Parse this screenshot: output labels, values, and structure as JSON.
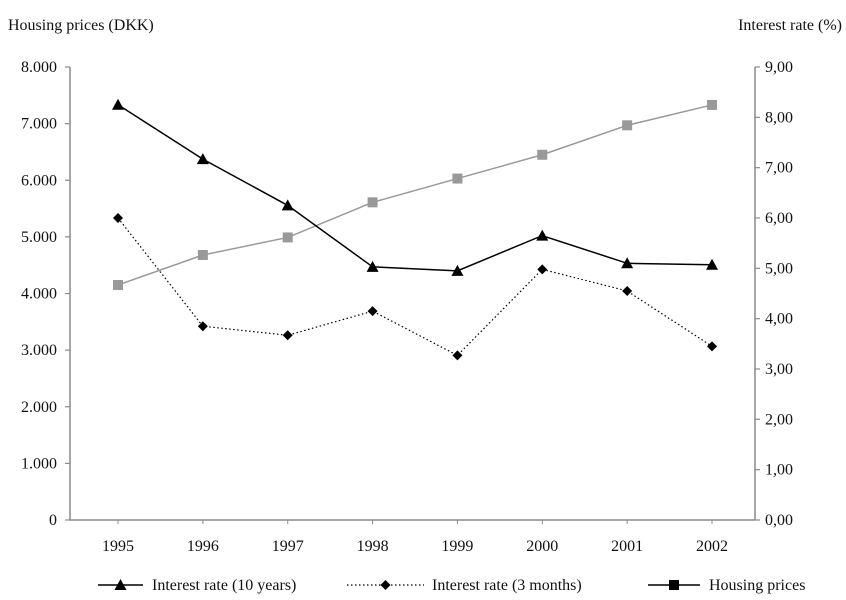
{
  "chart_data": {
    "type": "line",
    "left_axis_title": "Housing prices (DKK)",
    "right_axis_title": "Interest rate (%)",
    "categories": [
      "1995",
      "1996",
      "1997",
      "1998",
      "1999",
      "2000",
      "2001",
      "2002"
    ],
    "left_ylim": [
      0,
      8000
    ],
    "left_ticks": [
      "0",
      "1.000",
      "2.000",
      "3.000",
      "4.000",
      "5.000",
      "6.000",
      "7.000",
      "8.000"
    ],
    "right_ylim": [
      0,
      9
    ],
    "right_ticks": [
      "0,00",
      "1,00",
      "2,00",
      "3,00",
      "4,00",
      "5,00",
      "6,00",
      "7,00",
      "8,00",
      "9,00"
    ],
    "series": [
      {
        "name": "Interest rate (10 years)",
        "axis": "right",
        "marker": "triangle",
        "line": "solid",
        "color": "#000000",
        "values": [
          8.25,
          7.17,
          6.25,
          5.03,
          4.95,
          5.65,
          5.1,
          5.07
        ]
      },
      {
        "name": "Interest rate (3 months)",
        "axis": "right",
        "marker": "diamond",
        "line": "dotted",
        "color": "#000000",
        "values": [
          6.0,
          3.85,
          3.67,
          4.15,
          3.27,
          4.98,
          4.55,
          3.45
        ]
      },
      {
        "name": "Housing prices",
        "axis": "left",
        "marker": "square",
        "line": "solid",
        "color": "#999999",
        "values": [
          4150,
          4680,
          4990,
          5610,
          6030,
          6450,
          6970,
          7330
        ]
      }
    ],
    "grid": false,
    "legend_position": "bottom"
  }
}
